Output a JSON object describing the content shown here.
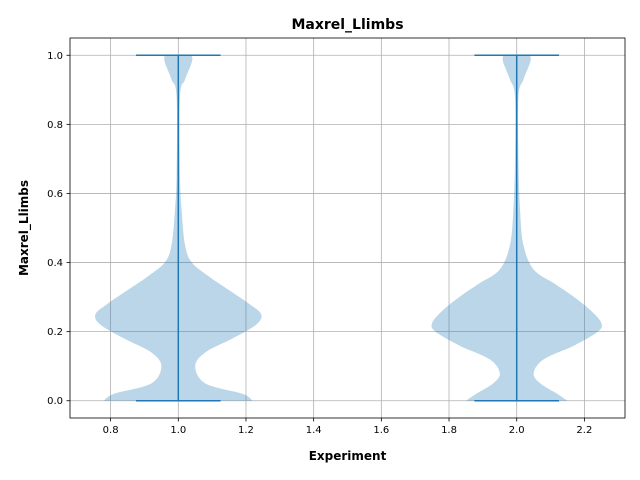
{
  "chart_data": {
    "type": "violin",
    "title": "Maxrel_Llimbs",
    "xlabel": "Experiment",
    "ylabel": "Maxrel_Llimbs",
    "xlim": [
      0.68,
      2.32
    ],
    "ylim": [
      -0.05,
      1.05
    ],
    "xticks": [
      0.8,
      1.0,
      1.2,
      1.4,
      1.6,
      1.8,
      2.0,
      2.2
    ],
    "xtick_labels": [
      "0.8",
      "1.0",
      "1.2",
      "1.4",
      "1.6",
      "1.8",
      "2.0",
      "2.2"
    ],
    "yticks": [
      0.0,
      0.2,
      0.4,
      0.6,
      0.8,
      1.0
    ],
    "ytick_labels": [
      "0.0",
      "0.2",
      "0.4",
      "0.6",
      "0.8",
      "1.0"
    ],
    "grid": true,
    "colors": {
      "body": "#1f77b4",
      "body_alpha": 0.3,
      "lines": "#1f77b4"
    },
    "series": [
      {
        "position": 1.0,
        "min": 0.0,
        "max": 1.0,
        "density_profile": [
          {
            "y": 0.0,
            "half_width": 0.22
          },
          {
            "y": 0.02,
            "half_width": 0.19
          },
          {
            "y": 0.05,
            "half_width": 0.08
          },
          {
            "y": 0.1,
            "half_width": 0.05
          },
          {
            "y": 0.14,
            "half_width": 0.08
          },
          {
            "y": 0.18,
            "half_width": 0.16
          },
          {
            "y": 0.22,
            "half_width": 0.23
          },
          {
            "y": 0.25,
            "half_width": 0.245
          },
          {
            "y": 0.28,
            "half_width": 0.21
          },
          {
            "y": 0.32,
            "half_width": 0.15
          },
          {
            "y": 0.36,
            "half_width": 0.09
          },
          {
            "y": 0.4,
            "half_width": 0.04
          },
          {
            "y": 0.45,
            "half_width": 0.02
          },
          {
            "y": 0.55,
            "half_width": 0.01
          },
          {
            "y": 0.65,
            "half_width": 0.005
          },
          {
            "y": 0.88,
            "half_width": 0.005
          },
          {
            "y": 0.93,
            "half_width": 0.02
          },
          {
            "y": 0.98,
            "half_width": 0.04
          },
          {
            "y": 1.0,
            "half_width": 0.04
          }
        ]
      },
      {
        "position": 2.0,
        "min": 0.0,
        "max": 1.0,
        "density_profile": [
          {
            "y": 0.0,
            "half_width": 0.15
          },
          {
            "y": 0.02,
            "half_width": 0.12
          },
          {
            "y": 0.05,
            "half_width": 0.07
          },
          {
            "y": 0.08,
            "half_width": 0.05
          },
          {
            "y": 0.12,
            "half_width": 0.08
          },
          {
            "y": 0.16,
            "half_width": 0.17
          },
          {
            "y": 0.2,
            "half_width": 0.24
          },
          {
            "y": 0.225,
            "half_width": 0.25
          },
          {
            "y": 0.26,
            "half_width": 0.22
          },
          {
            "y": 0.3,
            "half_width": 0.17
          },
          {
            "y": 0.34,
            "half_width": 0.11
          },
          {
            "y": 0.38,
            "half_width": 0.05
          },
          {
            "y": 0.45,
            "half_width": 0.02
          },
          {
            "y": 0.55,
            "half_width": 0.01
          },
          {
            "y": 0.7,
            "half_width": 0.005
          },
          {
            "y": 0.88,
            "half_width": 0.005
          },
          {
            "y": 0.93,
            "half_width": 0.02
          },
          {
            "y": 0.98,
            "half_width": 0.04
          },
          {
            "y": 1.0,
            "half_width": 0.04
          }
        ]
      }
    ],
    "extrema_cap_half_width": 0.125
  }
}
